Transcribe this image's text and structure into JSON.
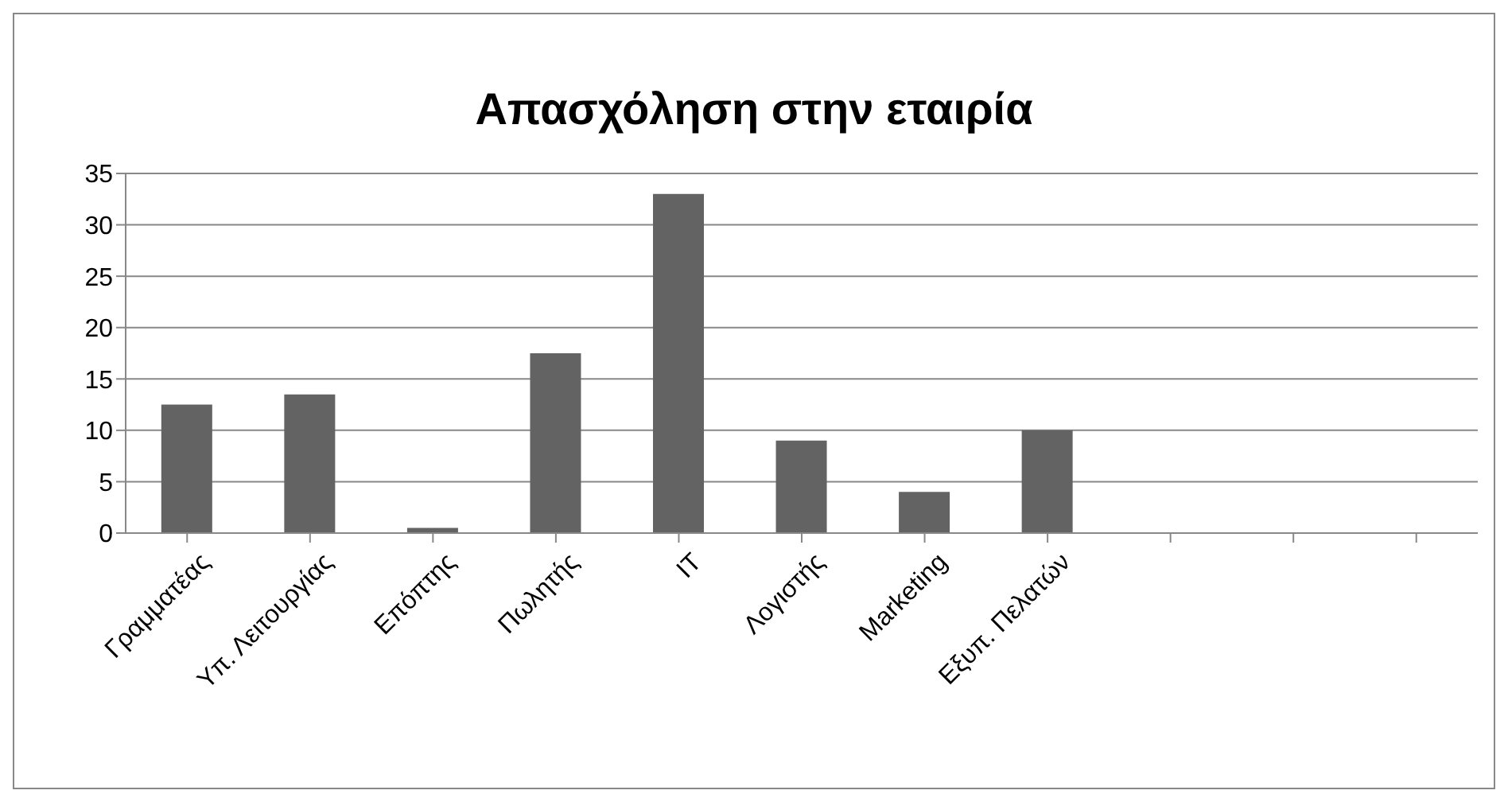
{
  "chart_data": {
    "type": "bar",
    "title": "Απασχόληση στην εταιρία",
    "categories": [
      "Γραμματέας",
      "Υπ. Λειτουργίας",
      "Επόπτης",
      "Πωλητής",
      "IT",
      "Λογιστής",
      "Marketing",
      "Εξυπ. Πελατών",
      null,
      null,
      null
    ],
    "values": [
      12.5,
      13.5,
      0.5,
      17.5,
      33,
      9,
      4,
      10,
      null,
      null,
      null
    ],
    "color": "#636363",
    "ylim": [
      0,
      35
    ],
    "yticks": [
      0,
      5,
      10,
      15,
      20,
      25,
      30,
      35
    ],
    "grid": "y"
  }
}
